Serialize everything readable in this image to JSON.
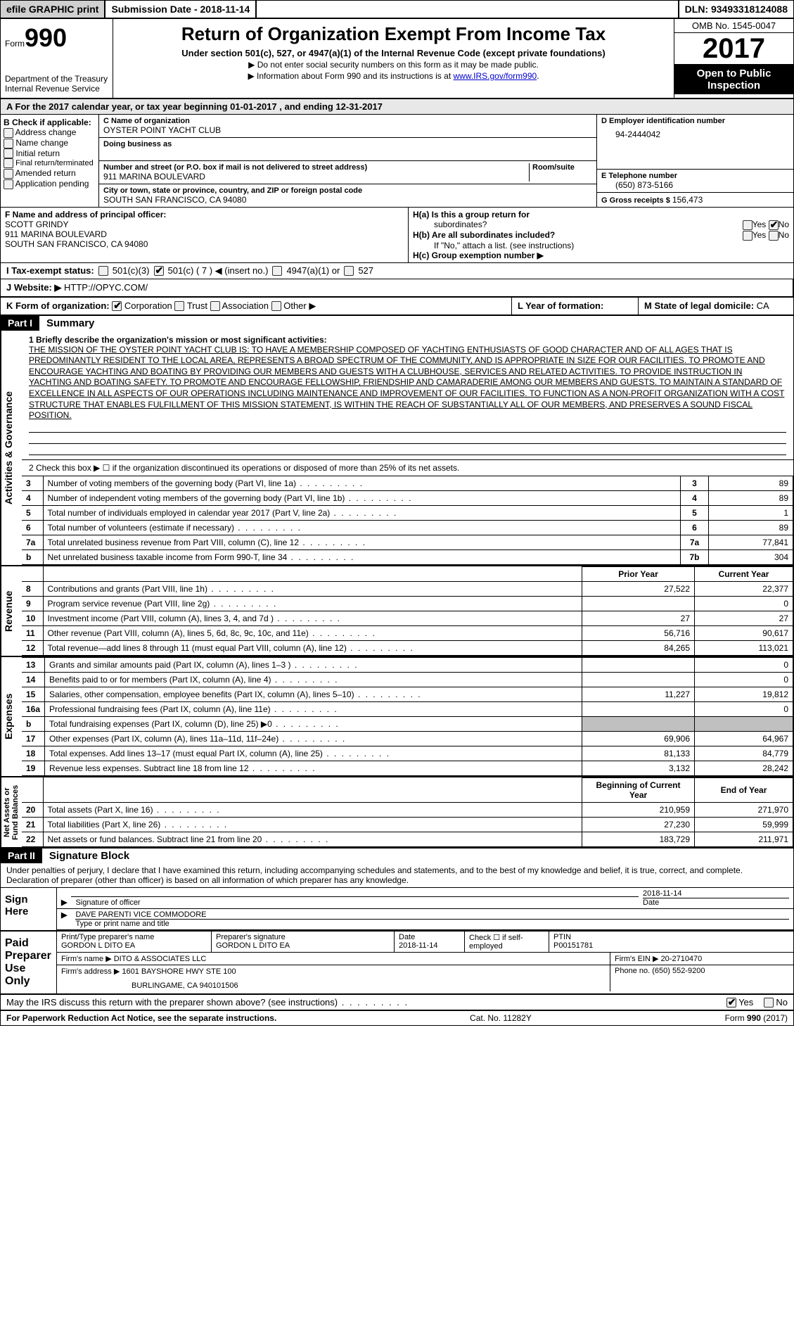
{
  "topbar": {
    "efile": "efile GRAPHIC print",
    "submission_label": "Submission Date - ",
    "submission_date": "2018-11-14",
    "dln_label": "DLN: ",
    "dln": "93493318124088"
  },
  "header": {
    "form_prefix": "Form",
    "form_number": "990",
    "dept1": "Department of the Treasury",
    "dept2": "Internal Revenue Service",
    "title": "Return of Organization Exempt From Income Tax",
    "subtitle": "Under section 501(c), 527, or 4947(a)(1) of the Internal Revenue Code (except private foundations)",
    "note1": "▶ Do not enter social security numbers on this form as it may be made public.",
    "note2_prefix": "▶ Information about Form 990 and its instructions is at ",
    "note2_link": "www.IRS.gov/form990",
    "omb": "OMB No. 1545-0047",
    "year": "2017",
    "inspect1": "Open to Public",
    "inspect2": "Inspection"
  },
  "sectionA": "A   For the 2017 calendar year, or tax year beginning 01-01-2017   , and ending 12-31-2017",
  "boxB": {
    "label": "B Check if applicable:",
    "items": [
      "Address change",
      "Name change",
      "Initial return",
      "Final return/terminated",
      "Amended return",
      "Application pending"
    ]
  },
  "boxC": {
    "name_label": "C Name of organization",
    "name": "OYSTER POINT YACHT CLUB",
    "dba_label": "Doing business as",
    "street_label": "Number and street (or P.O. box if mail is not delivered to street address)",
    "room_label": "Room/suite",
    "street": "911 MARINA BOULEVARD",
    "city_label": "City or town, state or province, country, and ZIP or foreign postal code",
    "city": "SOUTH SAN FRANCISCO, CA  94080"
  },
  "boxD": {
    "label": "D Employer identification number",
    "ein": "94-2444042"
  },
  "boxE": {
    "label": "E Telephone number",
    "phone": "(650) 873-5166"
  },
  "boxG": {
    "label": "G Gross receipts $ ",
    "amount": "156,473"
  },
  "boxF": {
    "label": "F  Name and address of principal officer:",
    "name": "SCOTT GRINDY",
    "addr1": "911 MARINA BOULEVARD",
    "addr2": "SOUTH SAN FRANCISCO, CA  94080"
  },
  "boxH": {
    "ha_label": "H(a)  Is this a group return for",
    "ha_sub": "subordinates?",
    "hb_label": "H(b)  Are all subordinates included?",
    "hb_note": "If \"No,\" attach a list. (see instructions)",
    "hc_label": "H(c)  Group exemption number ▶",
    "yes": "Yes",
    "no": "No"
  },
  "rowI": {
    "label": "I   Tax-exempt status:",
    "c3": "501(c)(3)",
    "c": "501(c) ( 7 ) ◀ (insert no.)",
    "a1": "4947(a)(1) or",
    "s527": "527"
  },
  "rowJ": {
    "label": "J   Website: ▶ ",
    "url": "HTTP://OPYC.COM/"
  },
  "rowK": {
    "label": "K Form of organization:",
    "opts": [
      "Corporation",
      "Trust",
      "Association",
      "Other ▶"
    ]
  },
  "rowL": {
    "label": "L Year of formation:"
  },
  "rowM": {
    "label": "M State of legal domicile: ",
    "val": "CA"
  },
  "part1": {
    "tag": "Part I",
    "title": "Summary"
  },
  "sideLabels": {
    "act": "Activities & Governance",
    "rev": "Revenue",
    "exp": "Expenses",
    "net": "Net Assets or\nFund Balances"
  },
  "line1": {
    "label": "1  Briefly describe the organization's mission or most significant activities:",
    "text": "THE MISSION OF THE OYSTER POINT YACHT CLUB IS: TO HAVE A MEMBERSHIP COMPOSED OF YACHTING ENTHUSIASTS OF GOOD CHARACTER AND OF ALL AGES THAT IS PREDOMINANTLY RESIDENT TO THE LOCAL AREA, REPRESENTS A BROAD SPECTRUM OF THE COMMUNITY, AND IS APPROPRIATE IN SIZE FOR OUR FACILITIES. TO PROMOTE AND ENCOURAGE YACHTING AND BOATING BY PROVIDING OUR MEMBERS AND GUESTS WITH A CLUBHOUSE, SERVICES AND RELATED ACTIVITIES. TO PROVIDE INSTRUCTION IN YACHTING AND BOATING SAFETY. TO PROMOTE AND ENCOURAGE FELLOWSHIP, FRIENDSHIP AND CAMARADERIE AMONG OUR MEMBERS AND GUESTS. TO MAINTAIN A STANDARD OF EXCELLENCE IN ALL ASPECTS OF OUR OPERATIONS INCLUDING MAINTENANCE AND IMPROVEMENT OF OUR FACILITIES. TO FUNCTION AS A NON-PROFIT ORGANIZATION WITH A COST STRUCTURE THAT ENABLES FULFILLMENT OF THIS MISSION STATEMENT, IS WITHIN THE REACH OF SUBSTANTIALLY ALL OF OUR MEMBERS, AND PRESERVES A SOUND FISCAL POSITION."
  },
  "line2": "2   Check this box ▶ ☐ if the organization discontinued its operations or disposed of more than 25% of its net assets.",
  "actLines": [
    {
      "n": "3",
      "desc": "Number of voting members of the governing body (Part VI, line 1a)",
      "col": "3",
      "val": "89"
    },
    {
      "n": "4",
      "desc": "Number of independent voting members of the governing body (Part VI, line 1b)",
      "col": "4",
      "val": "89"
    },
    {
      "n": "5",
      "desc": "Total number of individuals employed in calendar year 2017 (Part V, line 2a)",
      "col": "5",
      "val": "1"
    },
    {
      "n": "6",
      "desc": "Total number of volunteers (estimate if necessary)",
      "col": "6",
      "val": "89"
    },
    {
      "n": "7a",
      "desc": "Total unrelated business revenue from Part VIII, column (C), line 12",
      "col": "7a",
      "val": "77,841"
    },
    {
      "n": "b",
      "desc": "Net unrelated business taxable income from Form 990-T, line 34",
      "col": "7b",
      "val": "304"
    }
  ],
  "revHdr": {
    "prior": "Prior Year",
    "curr": "Current Year"
  },
  "revLines": [
    {
      "n": "8",
      "desc": "Contributions and grants (Part VIII, line 1h)",
      "p": "27,522",
      "c": "22,377"
    },
    {
      "n": "9",
      "desc": "Program service revenue (Part VIII, line 2g)",
      "p": "",
      "c": "0"
    },
    {
      "n": "10",
      "desc": "Investment income (Part VIII, column (A), lines 3, 4, and 7d )",
      "p": "27",
      "c": "27"
    },
    {
      "n": "11",
      "desc": "Other revenue (Part VIII, column (A), lines 5, 6d, 8c, 9c, 10c, and 11e)",
      "p": "56,716",
      "c": "90,617"
    },
    {
      "n": "12",
      "desc": "Total revenue—add lines 8 through 11 (must equal Part VIII, column (A), line 12)",
      "p": "84,265",
      "c": "113,021"
    }
  ],
  "expLines": [
    {
      "n": "13",
      "desc": "Grants and similar amounts paid (Part IX, column (A), lines 1–3 )",
      "p": "",
      "c": "0"
    },
    {
      "n": "14",
      "desc": "Benefits paid to or for members (Part IX, column (A), line 4)",
      "p": "",
      "c": "0"
    },
    {
      "n": "15",
      "desc": "Salaries, other compensation, employee benefits (Part IX, column (A), lines 5–10)",
      "p": "11,227",
      "c": "19,812"
    },
    {
      "n": "16a",
      "desc": "Professional fundraising fees (Part IX, column (A), line 11e)",
      "p": "",
      "c": "0"
    },
    {
      "n": "b",
      "desc": "Total fundraising expenses (Part IX, column (D), line 25) ▶0",
      "p": "SHADE",
      "c": "SHADE"
    },
    {
      "n": "17",
      "desc": "Other expenses (Part IX, column (A), lines 11a–11d, 11f–24e)",
      "p": "69,906",
      "c": "64,967"
    },
    {
      "n": "18",
      "desc": "Total expenses. Add lines 13–17 (must equal Part IX, column (A), line 25)",
      "p": "81,133",
      "c": "84,779"
    },
    {
      "n": "19",
      "desc": "Revenue less expenses. Subtract line 18 from line 12",
      "p": "3,132",
      "c": "28,242"
    }
  ],
  "netHdr": {
    "prior": "Beginning of Current Year",
    "curr": "End of Year"
  },
  "netLines": [
    {
      "n": "20",
      "desc": "Total assets (Part X, line 16)",
      "p": "210,959",
      "c": "271,970"
    },
    {
      "n": "21",
      "desc": "Total liabilities (Part X, line 26)",
      "p": "27,230",
      "c": "59,999"
    },
    {
      "n": "22",
      "desc": "Net assets or fund balances. Subtract line 21 from line 20",
      "p": "183,729",
      "c": "211,971"
    }
  ],
  "part2": {
    "tag": "Part II",
    "title": "Signature Block"
  },
  "sigIntro": "Under penalties of perjury, I declare that I have examined this return, including accompanying schedules and statements, and to the best of my knowledge and belief, it is true, correct, and complete. Declaration of preparer (other than officer) is based on all information of which preparer has any knowledge.",
  "sign": {
    "here": "Sign Here",
    "sig_label": "Signature of officer",
    "date_label": "Date",
    "date": "2018-11-14",
    "name": "DAVE PARENTI  VICE COMMODORE",
    "name_label": "Type or print name and title"
  },
  "prep": {
    "here": "Paid Preparer Use Only",
    "name_label": "Print/Type preparer's name",
    "name": "GORDON L DITO EA",
    "sig_label": "Preparer's signature",
    "sig": "GORDON L DITO EA",
    "date_label": "Date",
    "date": "2018-11-14",
    "check_label": "Check ☐ if self-employed",
    "ptin_label": "PTIN",
    "ptin": "P00151781",
    "firm_name_label": "Firm's name    ▶ ",
    "firm_name": "DITO & ASSOCIATES LLC",
    "firm_ein_label": "Firm's EIN ▶ ",
    "firm_ein": "20-2710470",
    "firm_addr_label": "Firm's address ▶ ",
    "firm_addr1": "1601 BAYSHORE HWY STE 100",
    "firm_addr2": "BURLINGAME, CA  940101506",
    "phone_label": "Phone no. ",
    "phone": "(650) 552-9200"
  },
  "discuss": {
    "q": "May the IRS discuss this return with the preparer shown above? (see instructions)",
    "yes": "Yes",
    "no": "No"
  },
  "footer": {
    "left": "For Paperwork Reduction Act Notice, see the separate instructions.",
    "mid": "Cat. No. 11282Y",
    "right_prefix": "Form ",
    "right_form": "990",
    "right_year": " (2017)"
  }
}
